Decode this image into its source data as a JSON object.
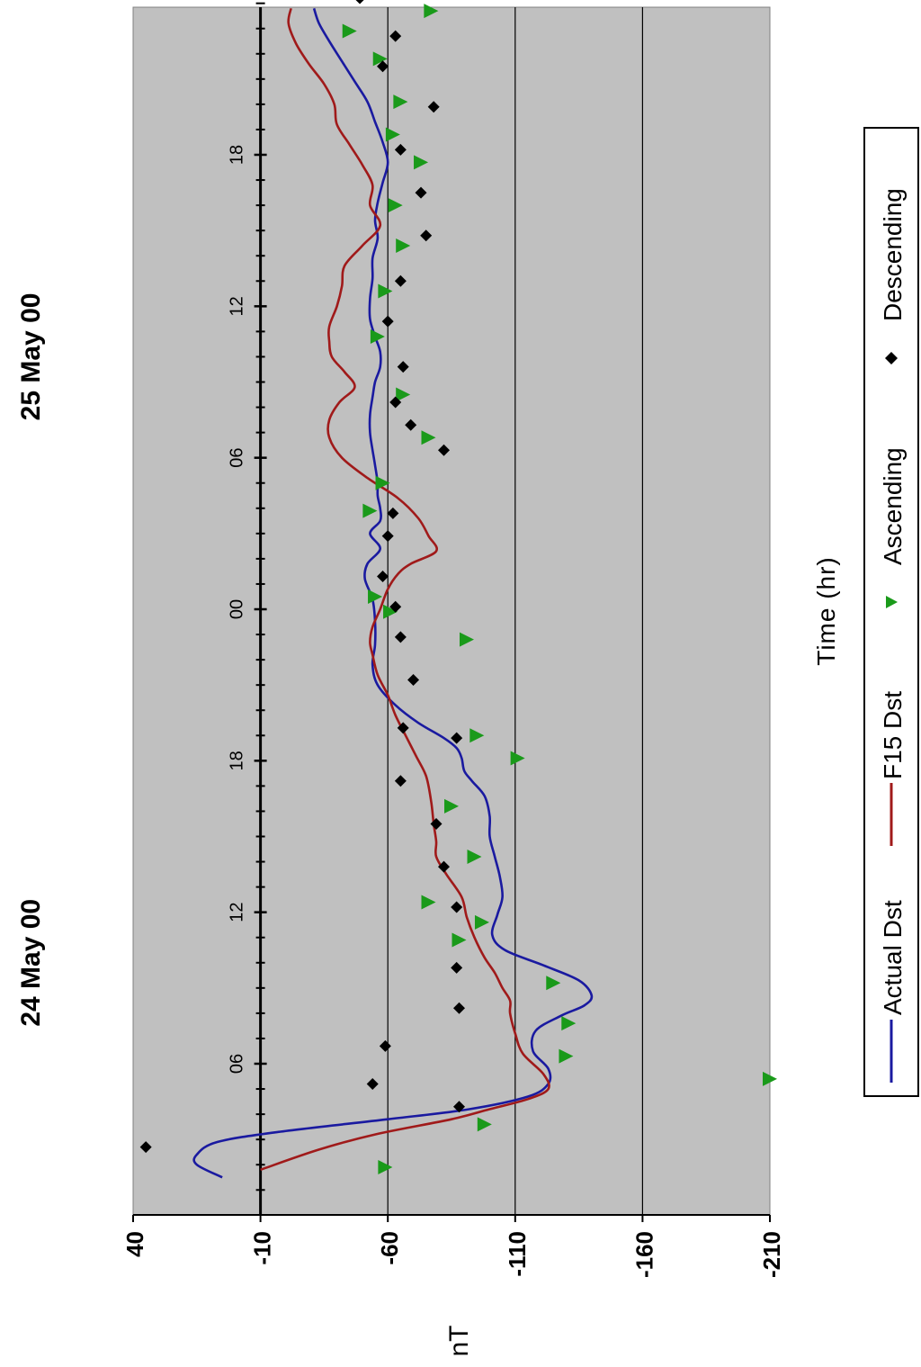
{
  "chart_data": {
    "type": "line",
    "orientation": "rotated-90",
    "date_labels": [
      "24 May 00",
      "25 May 00"
    ],
    "xlabel": "Time (hr)",
    "ylabel": "nT",
    "x_ticks": [
      "06",
      "12",
      "18",
      "00",
      "06",
      "12",
      "18"
    ],
    "x_tick_hours": [
      6,
      12,
      18,
      24,
      30,
      36,
      42
    ],
    "xlim": [
      1,
      48.5
    ],
    "y_ticks": [
      40,
      -10,
      -60,
      -110,
      -160,
      -210
    ],
    "ylim": [
      -210,
      40
    ],
    "grid": "horizontal gridlines at each y tick",
    "zero_line": -10,
    "legend": {
      "position": "right",
      "entries": [
        "Actual Dst",
        "F15 Dst",
        "Ascending",
        "Descending"
      ]
    },
    "colors": {
      "Actual Dst": "#1a1aa0",
      "F15 Dst": "#a01a1a",
      "Ascending": "#1a9a1a",
      "Descending": "#000000",
      "plot_background": "#c0c0c0"
    },
    "series": [
      {
        "name": "Actual Dst",
        "type": "line",
        "x": [
          1.5,
          2.0,
          2.4,
          2.9,
          3.3,
          3.8,
          4.2,
          4.7,
          5.2,
          5.8,
          6.5,
          7.3,
          7.9,
          8.3,
          8.7,
          9.3,
          9.9,
          10.5,
          11.1,
          11.9,
          12.6,
          13.4,
          14.2,
          15.0,
          15.8,
          16.6,
          17.2,
          17.6,
          18.1,
          18.5,
          18.9,
          19.5,
          20.2,
          21.0,
          21.8,
          22.6,
          23.5,
          24.4,
          25.2,
          25.8,
          26.4,
          27.0,
          27.5,
          28.0,
          28.5,
          29.0,
          29.7,
          30.3,
          31.0,
          31.7,
          32.4,
          33.0,
          33.6,
          34.2,
          34.8,
          35.5,
          36.3,
          37.1,
          37.9,
          38.7,
          39.4,
          40.1,
          40.9,
          41.7,
          42.5,
          43.3,
          44.1,
          44.9,
          45.7,
          46.5,
          47.2,
          47.8
        ],
        "y": [
          5,
          15,
          15,
          7,
          -17,
          -60,
          -92,
          -115,
          -123,
          -123,
          -117,
          -118,
          -128,
          -137,
          -140,
          -135,
          -121,
          -106,
          -101,
          -103,
          -105,
          -104,
          -102,
          -100,
          -100,
          -98,
          -93,
          -90,
          -89,
          -87,
          -82,
          -72,
          -63,
          -56,
          -54,
          -55,
          -55,
          -54,
          -51,
          -52,
          -57,
          -53,
          -57,
          -57,
          -56,
          -56,
          -55,
          -54,
          -53,
          -53,
          -54,
          -55,
          -57,
          -57,
          -55,
          -53,
          -53,
          -54,
          -54,
          -56,
          -55,
          -56,
          -58,
          -60,
          -58,
          -55,
          -52,
          -47,
          -42,
          -37,
          -33,
          -31
        ]
      },
      {
        "name": "F15 Dst",
        "type": "line",
        "x": [
          1.8,
          2.6,
          3.2,
          3.8,
          4.2,
          4.6,
          5.0,
          5.6,
          6.4,
          7.2,
          8.0,
          8.5,
          9.0,
          9.6,
          10.2,
          11.0,
          11.8,
          12.6,
          13.5,
          14.2,
          14.8,
          15.5,
          16.4,
          17.4,
          18.2,
          19.0,
          19.8,
          20.6,
          21.4,
          22.2,
          22.7,
          23.3,
          24.0,
          24.8,
          25.4,
          25.8,
          26.3,
          26.9,
          27.6,
          28.4,
          29.2,
          30.0,
          30.8,
          31.5,
          32.2,
          32.8,
          33.4,
          34.0,
          34.6,
          35.2,
          36.0,
          36.8,
          37.6,
          38.4,
          39.2,
          40.0,
          40.8,
          41.6,
          42.4,
          43.2,
          44.0,
          44.8,
          45.6,
          46.4,
          47.2,
          47.8
        ],
        "y": [
          -10,
          -33,
          -55,
          -85,
          -100,
          -115,
          -123,
          -121,
          -113,
          -110,
          -108,
          -108,
          -105,
          -102,
          -98,
          -94,
          -91,
          -89,
          -83,
          -79,
          -79,
          -78,
          -77,
          -75,
          -71,
          -67,
          -63,
          -60,
          -56,
          -54,
          -53,
          -54,
          -57,
          -60,
          -64,
          -69,
          -79,
          -76,
          -72,
          -64,
          -52,
          -42,
          -37,
          -37,
          -41,
          -47,
          -43,
          -38,
          -37,
          -37,
          -40,
          -42,
          -43,
          -50,
          -57,
          -53,
          -54,
          -50,
          -45,
          -40,
          -39,
          -35,
          -29,
          -24,
          -21,
          -22
        ]
      },
      {
        "name": "Ascending",
        "type": "scatter",
        "marker": "triangle",
        "x": [
          1.9,
          3.6,
          5.4,
          6.3,
          7.6,
          9.2,
          10.9,
          11.6,
          12.4,
          14.2,
          16.2,
          18.1,
          19.0,
          22.8,
          23.9,
          24.5,
          27.9,
          29.0,
          30.8,
          32.5,
          34.8,
          36.6,
          38.4,
          40.0,
          41.7,
          42.8,
          44.1,
          45.8,
          46.9,
          47.7
        ],
        "y": [
          -59,
          -98,
          -210,
          -130,
          -131,
          -125,
          -88,
          -97,
          -76,
          -94,
          -85,
          -111,
          -95,
          -91,
          -61,
          -55,
          -53,
          -58,
          -76,
          -66,
          -56,
          -59,
          -66,
          -63,
          -73,
          -62,
          -65,
          -57,
          -45,
          -77
        ]
      },
      {
        "name": "Descending",
        "type": "scatter",
        "marker": "diamond",
        "x": [
          2.7,
          4.3,
          5.2,
          6.7,
          8.2,
          9.8,
          12.2,
          13.8,
          15.5,
          17.2,
          18.9,
          19.3,
          21.2,
          22.9,
          24.1,
          25.3,
          26.9,
          27.8,
          30.3,
          31.3,
          32.2,
          33.6,
          35.4,
          37.0,
          38.8,
          40.5,
          42.2,
          43.9,
          45.5,
          46.7,
          48.2
        ],
        "y": [
          35,
          -88,
          -54,
          -59,
          -88,
          -87,
          -87,
          -82,
          -79,
          -65,
          -87,
          -66,
          -70,
          -65,
          -63,
          -58,
          -60,
          -62,
          -82,
          -69,
          -63,
          -66,
          -60,
          -65,
          -75,
          -73,
          -65,
          -78,
          -58,
          -63,
          -49
        ]
      }
    ]
  },
  "legend": {
    "actual_dst": "Actual Dst",
    "f15_dst": "F15 Dst",
    "ascending": "Ascending",
    "descending": "Descending"
  }
}
